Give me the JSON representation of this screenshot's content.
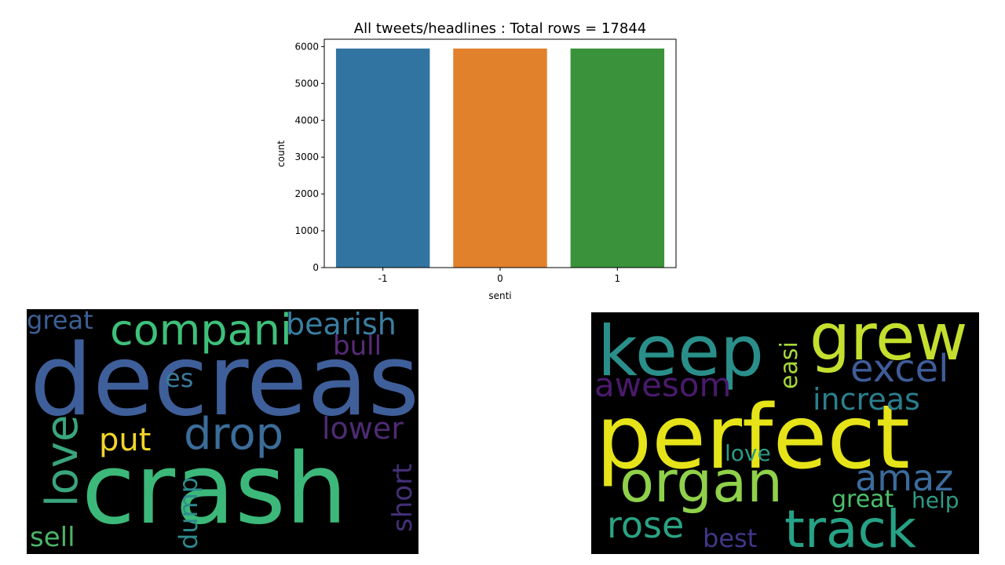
{
  "chart_data": {
    "type": "bar",
    "title": "All tweets/headlines : Total rows = 17844",
    "xlabel": "senti",
    "ylabel": "count",
    "categories": [
      "-1",
      "0",
      "1"
    ],
    "values": [
      5948,
      5948,
      5948
    ],
    "ylim": [
      0,
      6200
    ],
    "yticks": [
      0,
      1000,
      2000,
      3000,
      4000,
      5000,
      6000
    ],
    "colors": [
      "#3274a1",
      "#e1812c",
      "#3a923a"
    ],
    "grid": false
  },
  "wordclouds": {
    "negative": {
      "background": "#000000",
      "words": [
        {
          "text": "crash",
          "color": "#3cb97a"
        },
        {
          "text": "decreas",
          "color": "#3f5f9a"
        },
        {
          "text": "compani",
          "color": "#3ec07a"
        },
        {
          "text": "bearish",
          "color": "#3a7ea2"
        },
        {
          "text": "great",
          "color": "#3d5f95"
        },
        {
          "text": "drop",
          "color": "#3b6d9a"
        },
        {
          "text": "love",
          "color": "#3aa57d"
        },
        {
          "text": "put",
          "color": "#f1d629"
        },
        {
          "text": "lower",
          "color": "#4e2b73"
        },
        {
          "text": "bull",
          "color": "#5a2a7a"
        },
        {
          "text": "es",
          "color": "#3a7a9d"
        },
        {
          "text": "short",
          "color": "#45307a"
        },
        {
          "text": "dump",
          "color": "#2e8a8c"
        },
        {
          "text": "sell",
          "color": "#4bb46a"
        }
      ]
    },
    "positive": {
      "background": "#000000",
      "words": [
        {
          "text": "perfect",
          "color": "#e6e418"
        },
        {
          "text": "keep",
          "color": "#2a8f8a"
        },
        {
          "text": "grew",
          "color": "#c5df2e"
        },
        {
          "text": "excel",
          "color": "#3f5c99"
        },
        {
          "text": "awesom",
          "color": "#4a1a6c"
        },
        {
          "text": "easi",
          "color": "#a8d93a"
        },
        {
          "text": "increas",
          "color": "#2a7f8e"
        },
        {
          "text": "organ",
          "color": "#8fd14a"
        },
        {
          "text": "amaz",
          "color": "#3b6b9c"
        },
        {
          "text": "love",
          "color": "#2c9c86"
        },
        {
          "text": "great",
          "color": "#4cbf6b"
        },
        {
          "text": "help",
          "color": "#2e9a86"
        },
        {
          "text": "rose",
          "color": "#2aa383"
        },
        {
          "text": "best",
          "color": "#40378a"
        },
        {
          "text": "track",
          "color": "#26a286"
        }
      ]
    }
  }
}
